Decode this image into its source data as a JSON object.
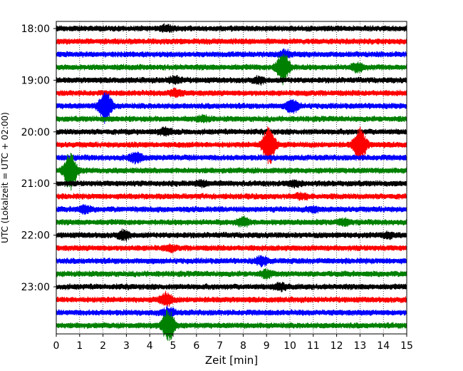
{
  "chart_data": {
    "type": "line",
    "title": "",
    "xlabel": "Zeit  [min]",
    "ylabel": "UTC (Lokalzeit = UTC + 02:00)",
    "xlim": [
      0,
      15
    ],
    "x_ticks": [
      0,
      1,
      2,
      3,
      4,
      5,
      6,
      7,
      8,
      9,
      10,
      11,
      12,
      13,
      14,
      15
    ],
    "x_tick_labels": [
      "0",
      "1",
      "2",
      "3",
      "4",
      "5",
      "6",
      "7",
      "8",
      "9",
      "10",
      "11",
      "12",
      "13",
      "14",
      "15"
    ],
    "y_tick_labels": [
      "18:00",
      "19:00",
      "20:00",
      "21:00",
      "22:00",
      "23:00"
    ],
    "grid": "vertical dotted",
    "trace_interval_min": 15,
    "color_cycle": [
      "#000000",
      "#ff0000",
      "#0000ff",
      "#008000"
    ],
    "traces": [
      {
        "start": "18:00",
        "color": "#000000",
        "bursts": [
          [
            4.7,
            3
          ]
        ]
      },
      {
        "start": "18:15",
        "color": "#ff0000",
        "bursts": []
      },
      {
        "start": "18:30",
        "color": "#0000ff",
        "bursts": [
          [
            9.8,
            4
          ]
        ]
      },
      {
        "start": "18:45",
        "color": "#008000",
        "bursts": [
          [
            9.7,
            22
          ],
          [
            12.9,
            5
          ]
        ]
      },
      {
        "start": "19:00",
        "color": "#000000",
        "bursts": [
          [
            5.1,
            4
          ],
          [
            8.7,
            3
          ]
        ]
      },
      {
        "start": "19:15",
        "color": "#ff0000",
        "bursts": [
          [
            5.1,
            4
          ]
        ]
      },
      {
        "start": "19:30",
        "color": "#0000ff",
        "bursts": [
          [
            2.1,
            22
          ],
          [
            10.1,
            8
          ]
        ]
      },
      {
        "start": "19:45",
        "color": "#008000",
        "bursts": [
          [
            6.3,
            3
          ]
        ]
      },
      {
        "start": "20:00",
        "color": "#000000",
        "bursts": [
          [
            4.7,
            4
          ]
        ]
      },
      {
        "start": "20:15",
        "color": "#ff0000",
        "bursts": [
          [
            9.1,
            26
          ],
          [
            13.0,
            22
          ]
        ]
      },
      {
        "start": "20:30",
        "color": "#0000ff",
        "bursts": [
          [
            3.4,
            6
          ]
        ]
      },
      {
        "start": "20:45",
        "color": "#008000",
        "bursts": [
          [
            0.6,
            26
          ]
        ]
      },
      {
        "start": "21:00",
        "color": "#000000",
        "bursts": [
          [
            6.2,
            3
          ],
          [
            10.2,
            3
          ]
        ]
      },
      {
        "start": "21:15",
        "color": "#ff0000",
        "bursts": [
          [
            10.5,
            3
          ]
        ]
      },
      {
        "start": "21:30",
        "color": "#0000ff",
        "bursts": [
          [
            1.2,
            4
          ],
          [
            11.0,
            3
          ]
        ]
      },
      {
        "start": "21:45",
        "color": "#008000",
        "bursts": [
          [
            8.0,
            5
          ],
          [
            12.3,
            3
          ]
        ]
      },
      {
        "start": "22:00",
        "color": "#000000",
        "bursts": [
          [
            2.9,
            5
          ],
          [
            14.2,
            3
          ]
        ]
      },
      {
        "start": "22:15",
        "color": "#ff0000",
        "bursts": [
          [
            4.9,
            3
          ]
        ]
      },
      {
        "start": "22:30",
        "color": "#0000ff",
        "bursts": [
          [
            8.8,
            5
          ]
        ]
      },
      {
        "start": "22:45",
        "color": "#008000",
        "bursts": [
          [
            9.0,
            4
          ]
        ]
      },
      {
        "start": "23:00",
        "color": "#000000",
        "bursts": [
          [
            9.6,
            4
          ]
        ]
      },
      {
        "start": "23:15",
        "color": "#ff0000",
        "bursts": [
          [
            4.7,
            8
          ]
        ]
      },
      {
        "start": "23:30",
        "color": "#0000ff",
        "bursts": [
          [
            4.8,
            6
          ]
        ]
      },
      {
        "start": "23:45",
        "color": "#008000",
        "bursts": [
          [
            4.8,
            22
          ]
        ]
      }
    ]
  }
}
